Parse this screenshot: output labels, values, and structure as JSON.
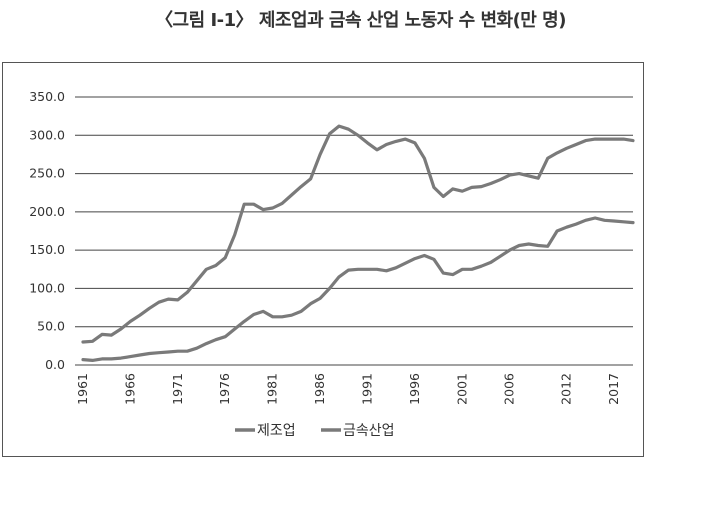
{
  "title": "〈그림 Ⅰ-1〉 제조업과 금속 산업 노동자 수 변화(만 명)",
  "colors": {
    "series": "#7a7a7a",
    "grid": "#444444",
    "frame": "#555555"
  },
  "chart_data": {
    "type": "line",
    "title": "〈그림 Ⅰ-1〉 제조업과 금속 산업 노동자 수 변화(만 명)",
    "xlabel": "",
    "ylabel": "",
    "ylim": [
      0,
      350
    ],
    "yticks": [
      "0.0",
      "50.0",
      "100.0",
      "150.0",
      "200.0",
      "250.0",
      "300.0",
      "350.0"
    ],
    "xticks": [
      "1961",
      "1966",
      "1971",
      "1976",
      "1981",
      "1986",
      "1991",
      "1996",
      "2001",
      "2006",
      "2012",
      "2017"
    ],
    "grid": "horizontal",
    "legend_position": "bottom",
    "x": [
      1961,
      1962,
      1963,
      1964,
      1965,
      1966,
      1967,
      1968,
      1969,
      1970,
      1971,
      1972,
      1973,
      1974,
      1975,
      1976,
      1977,
      1978,
      1979,
      1980,
      1981,
      1982,
      1983,
      1984,
      1985,
      1986,
      1987,
      1988,
      1989,
      1990,
      1991,
      1992,
      1993,
      1994,
      1995,
      1996,
      1997,
      1998,
      1999,
      2000,
      2001,
      2002,
      2003,
      2004,
      2005,
      2006,
      2007,
      2008,
      2009,
      2010,
      2011,
      2012,
      2013,
      2014,
      2015,
      2016,
      2017,
      2018,
      2019
    ],
    "series": [
      {
        "name": "제조업",
        "values": [
          30,
          31,
          40,
          39,
          47,
          57,
          65,
          74,
          82,
          86,
          85,
          95,
          110,
          125,
          130,
          140,
          170,
          210,
          210,
          203,
          205,
          211,
          222,
          233,
          243,
          275,
          302,
          312,
          308,
          300,
          290,
          281,
          288,
          292,
          295,
          290,
          270,
          232,
          220,
          230,
          227,
          232,
          233,
          237,
          242,
          248,
          250,
          247,
          244,
          270,
          277,
          283,
          288,
          293,
          295,
          295,
          295,
          295,
          293
        ]
      },
      {
        "name": "금속산업",
        "values": [
          7,
          6,
          8,
          8,
          9,
          11,
          13,
          15,
          16,
          17,
          18,
          18,
          22,
          28,
          33,
          37,
          47,
          57,
          66,
          70,
          63,
          63,
          65,
          70,
          80,
          87,
          100,
          115,
          124,
          125,
          125,
          125,
          123,
          127,
          133,
          139,
          143,
          138,
          120,
          118,
          125,
          125,
          129,
          134,
          142,
          150,
          156,
          158,
          156,
          155,
          175,
          180,
          184,
          189,
          192,
          189,
          188,
          187,
          186
        ]
      }
    ]
  }
}
